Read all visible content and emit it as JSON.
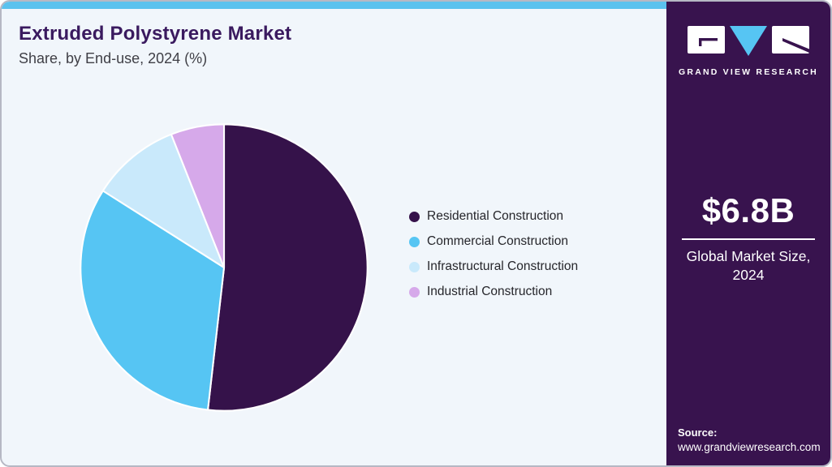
{
  "header": {
    "title": "Extruded Polystyrene Market",
    "subtitle": "Share, by End-use, 2024 (%)"
  },
  "chart_data": {
    "type": "pie",
    "title": "Extruded Polystyrene Market Share, by End-use, 2024 (%)",
    "categories": [
      "Residential Construction",
      "Commercial Construction",
      "Infrastructural Construction",
      "Industrial Construction"
    ],
    "values": [
      51.8,
      32.2,
      10.0,
      6.0
    ],
    "unit": "%",
    "colors": [
      "#35124A",
      "#56C5F3",
      "#C9E9FB",
      "#D6A9EA"
    ],
    "start_angle_deg": 0,
    "direction": "clockwise",
    "legend_position": "right"
  },
  "sidebar": {
    "brand": "GRAND VIEW RESEARCH",
    "market_size_value": "$6.8B",
    "market_size_label": "Global Market Size, 2024",
    "source_label": "Source:",
    "source_url": "www.grandviewresearch.com"
  },
  "theme": {
    "accent_bar": "#5BC2EE",
    "sidebar_bg": "#38134E",
    "background": "#F1F6FB",
    "title_color": "#3A1A5F",
    "logo_triangle": "#56C5F3"
  }
}
